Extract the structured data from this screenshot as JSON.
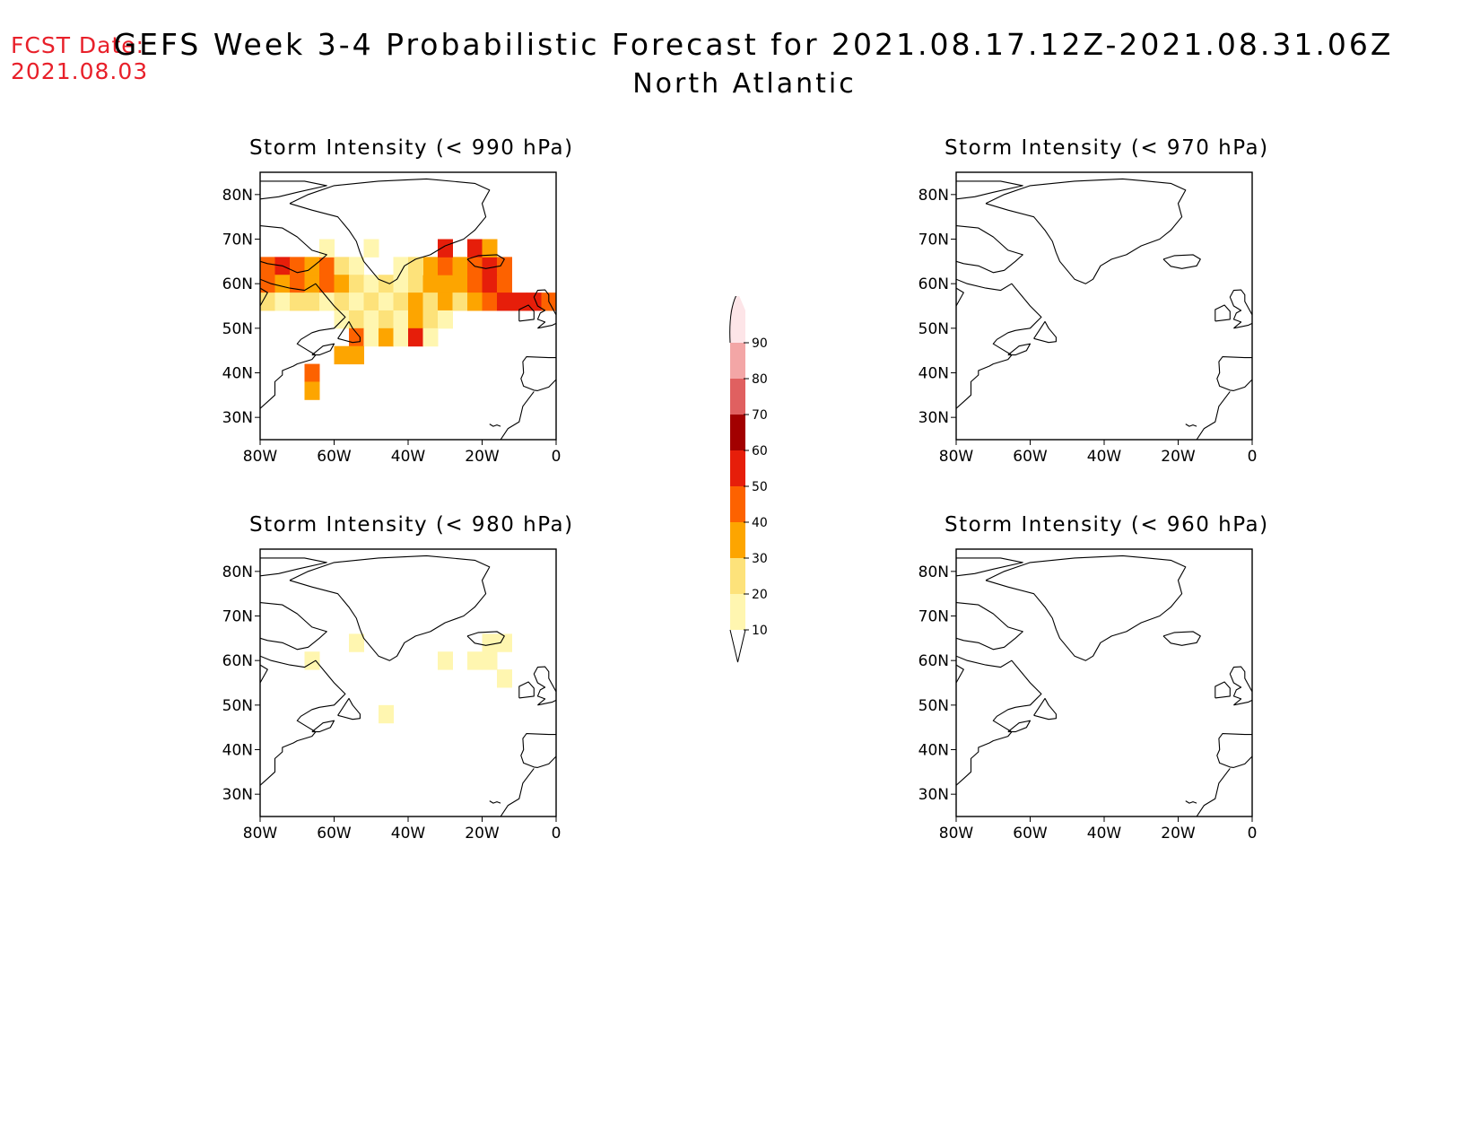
{
  "header": {
    "fcst_label": "FCST Date:",
    "fcst_date": "2021.08.03",
    "title": "GEFS Week 3-4 Probabilistic Forecast for 2021.08.17.12Z-2021.08.31.06Z",
    "region": "North Atlantic"
  },
  "axes": {
    "lat_ticks": [
      "80N",
      "70N",
      "60N",
      "50N",
      "40N",
      "30N"
    ],
    "lat_values": [
      80,
      70,
      60,
      50,
      40,
      30
    ],
    "lon_ticks": [
      "80W",
      "60W",
      "40W",
      "20W",
      "0"
    ],
    "lon_values": [
      -80,
      -60,
      -40,
      -20,
      0
    ],
    "lat_range": [
      25,
      85
    ],
    "lon_range": [
      -80,
      0
    ]
  },
  "panels": [
    {
      "title": "Storm Intensity (< 990 hPa)",
      "cells": [
        {
          "lon": -78,
          "lat": 64,
          "p": 45
        },
        {
          "lon": -74,
          "lat": 64,
          "p": 55
        },
        {
          "lon": -70,
          "lat": 64,
          "p": 45
        },
        {
          "lon": -66,
          "lat": 64,
          "p": 35
        },
        {
          "lon": -62,
          "lat": 64,
          "p": 45
        },
        {
          "lon": -58,
          "lat": 64,
          "p": 25
        },
        {
          "lon": -54,
          "lat": 64,
          "p": 15
        },
        {
          "lon": -78,
          "lat": 60,
          "p": 45
        },
        {
          "lon": -74,
          "lat": 60,
          "p": 35
        },
        {
          "lon": -70,
          "lat": 60,
          "p": 45
        },
        {
          "lon": -66,
          "lat": 60,
          "p": 35
        },
        {
          "lon": -62,
          "lat": 60,
          "p": 45
        },
        {
          "lon": -58,
          "lat": 60,
          "p": 35
        },
        {
          "lon": -54,
          "lat": 60,
          "p": 25
        },
        {
          "lon": -50,
          "lat": 60,
          "p": 15
        },
        {
          "lon": -46,
          "lat": 60,
          "p": 25
        },
        {
          "lon": -42,
          "lat": 60,
          "p": 15
        },
        {
          "lon": -38,
          "lat": 60,
          "p": 25
        },
        {
          "lon": -34,
          "lat": 60,
          "p": 35
        },
        {
          "lon": -30,
          "lat": 60,
          "p": 35
        },
        {
          "lon": -26,
          "lat": 60,
          "p": 35
        },
        {
          "lon": -22,
          "lat": 60,
          "p": 45
        },
        {
          "lon": -18,
          "lat": 60,
          "p": 55
        },
        {
          "lon": -14,
          "lat": 60,
          "p": 45
        },
        {
          "lon": -34,
          "lat": 64,
          "p": 35
        },
        {
          "lon": -30,
          "lat": 64,
          "p": 45
        },
        {
          "lon": -26,
          "lat": 64,
          "p": 35
        },
        {
          "lon": -22,
          "lat": 64,
          "p": 45
        },
        {
          "lon": -18,
          "lat": 64,
          "p": 55
        },
        {
          "lon": -14,
          "lat": 64,
          "p": 45
        },
        {
          "lon": -30,
          "lat": 68,
          "p": 55
        },
        {
          "lon": -22,
          "lat": 68,
          "p": 55
        },
        {
          "lon": -18,
          "lat": 68,
          "p": 35
        },
        {
          "lon": -78,
          "lat": 56,
          "p": 25
        },
        {
          "lon": -74,
          "lat": 56,
          "p": 15
        },
        {
          "lon": -70,
          "lat": 56,
          "p": 25
        },
        {
          "lon": -66,
          "lat": 56,
          "p": 25
        },
        {
          "lon": -62,
          "lat": 56,
          "p": 15
        },
        {
          "lon": -58,
          "lat": 56,
          "p": 25
        },
        {
          "lon": -54,
          "lat": 56,
          "p": 15
        },
        {
          "lon": -50,
          "lat": 56,
          "p": 25
        },
        {
          "lon": -46,
          "lat": 56,
          "p": 15
        },
        {
          "lon": -42,
          "lat": 56,
          "p": 25
        },
        {
          "lon": -38,
          "lat": 56,
          "p": 35
        },
        {
          "lon": -34,
          "lat": 56,
          "p": 25
        },
        {
          "lon": -30,
          "lat": 56,
          "p": 35
        },
        {
          "lon": -26,
          "lat": 56,
          "p": 25
        },
        {
          "lon": -22,
          "lat": 56,
          "p": 35
        },
        {
          "lon": -18,
          "lat": 56,
          "p": 45
        },
        {
          "lon": -14,
          "lat": 56,
          "p": 55
        },
        {
          "lon": -10,
          "lat": 56,
          "p": 55
        },
        {
          "lon": -6,
          "lat": 56,
          "p": 55
        },
        {
          "lon": -2,
          "lat": 56,
          "p": 45
        },
        {
          "lon": -58,
          "lat": 52,
          "p": 15
        },
        {
          "lon": -54,
          "lat": 52,
          "p": 25
        },
        {
          "lon": -50,
          "lat": 52,
          "p": 15
        },
        {
          "lon": -46,
          "lat": 52,
          "p": 25
        },
        {
          "lon": -42,
          "lat": 52,
          "p": 15
        },
        {
          "lon": -38,
          "lat": 52,
          "p": 35
        },
        {
          "lon": -34,
          "lat": 52,
          "p": 25
        },
        {
          "lon": -30,
          "lat": 52,
          "p": 15
        },
        {
          "lon": -54,
          "lat": 48,
          "p": 45
        },
        {
          "lon": -50,
          "lat": 48,
          "p": 15
        },
        {
          "lon": -46,
          "lat": 48,
          "p": 35
        },
        {
          "lon": -42,
          "lat": 48,
          "p": 15
        },
        {
          "lon": -38,
          "lat": 48,
          "p": 55
        },
        {
          "lon": -34,
          "lat": 48,
          "p": 15
        },
        {
          "lon": -58,
          "lat": 44,
          "p": 35
        },
        {
          "lon": -54,
          "lat": 44,
          "p": 35
        },
        {
          "lon": -66,
          "lat": 40,
          "p": 45
        },
        {
          "lon": -66,
          "lat": 36,
          "p": 35
        },
        {
          "lon": -62,
          "lat": 68,
          "p": 15
        },
        {
          "lon": -50,
          "lat": 68,
          "p": 15
        },
        {
          "lon": -42,
          "lat": 64,
          "p": 15
        },
        {
          "lon": -38,
          "lat": 64,
          "p": 25
        }
      ]
    },
    {
      "title": "Storm Intensity (< 970 hPa)",
      "cells": []
    },
    {
      "title": "Storm Intensity (< 980 hPa)",
      "cells": [
        {
          "lon": -18,
          "lat": 64,
          "p": 15
        },
        {
          "lon": -14,
          "lat": 64,
          "p": 15
        },
        {
          "lon": -18,
          "lat": 60,
          "p": 15
        },
        {
          "lon": -22,
          "lat": 60,
          "p": 15
        },
        {
          "lon": -14,
          "lat": 56,
          "p": 15
        },
        {
          "lon": -66,
          "lat": 60,
          "p": 15
        },
        {
          "lon": -46,
          "lat": 48,
          "p": 15
        },
        {
          "lon": -30,
          "lat": 60,
          "p": 15
        },
        {
          "lon": -54,
          "lat": 64,
          "p": 15
        }
      ]
    },
    {
      "title": "Storm Intensity (< 960 hPa)",
      "cells": []
    }
  ],
  "colorbar": {
    "labels": [
      "10",
      "20",
      "30",
      "40",
      "50",
      "60",
      "70",
      "80",
      "90"
    ],
    "levels": [
      10,
      20,
      30,
      40,
      50,
      60,
      70,
      80,
      90
    ],
    "colors": [
      "#fff6b0",
      "#fde27a",
      "#fda500",
      "#fd6200",
      "#e61e0a",
      "#a20000",
      "#e06060",
      "#f3a6a6",
      "#fde5e8"
    ]
  }
}
